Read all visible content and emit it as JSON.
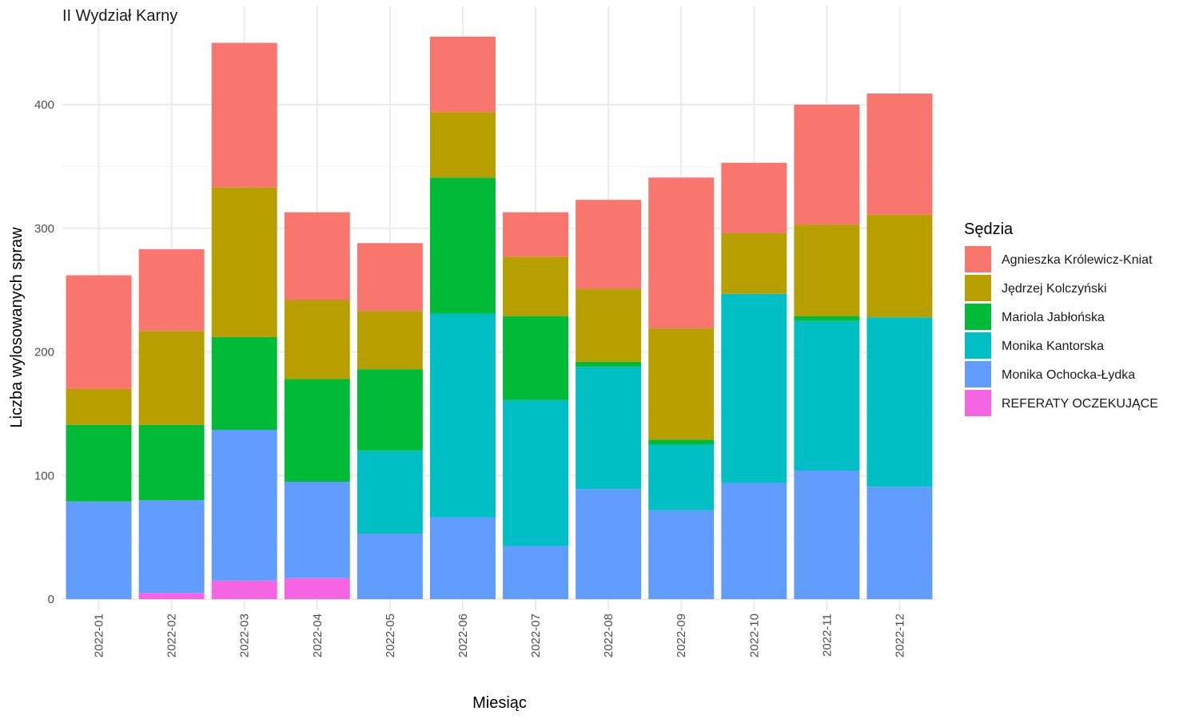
{
  "chart_data": {
    "type": "bar",
    "stacked": true,
    "title": "II Wydział Karny",
    "xlabel": "Miesiąc",
    "ylabel": "Liczba wylosowanych spraw",
    "ylim": [
      0,
      470
    ],
    "yticks": [
      0,
      100,
      200,
      300,
      400
    ],
    "grid": true,
    "legend_title": "Sędzia",
    "legend_position": "right",
    "categories": [
      "2022-01",
      "2022-02",
      "2022-03",
      "2022-04",
      "2022-05",
      "2022-06",
      "2022-07",
      "2022-08",
      "2022-09",
      "2022-10",
      "2022-11",
      "2022-12"
    ],
    "stack_order": [
      "REFERATY OCZEKUJĄCE",
      "Monika Ochocka-Łydka",
      "Monika Kantorska",
      "Mariola Jabłońska",
      "Jędrzej Kolczyński",
      "Agnieszka Królewicz-Kniat"
    ],
    "series": [
      {
        "name": "Agnieszka Królewicz-Kniat",
        "color": "#F8766D",
        "values": [
          92,
          66,
          117,
          71,
          55,
          61,
          36,
          72,
          122,
          57,
          97,
          98
        ]
      },
      {
        "name": "Jędrzej Kolczyński",
        "color": "#B79F00",
        "values": [
          29,
          76,
          121,
          64,
          47,
          53,
          48,
          59,
          90,
          49,
          74,
          83
        ]
      },
      {
        "name": "Mariola Jabłońska",
        "color": "#00BA38",
        "values": [
          62,
          61,
          75,
          83,
          66,
          110,
          68,
          4,
          4,
          0,
          4,
          0
        ]
      },
      {
        "name": "Monika Kantorska",
        "color": "#00BFC4",
        "values": [
          0,
          0,
          0,
          0,
          67,
          165,
          118,
          99,
          53,
          153,
          121,
          137
        ]
      },
      {
        "name": "Monika Ochocka-Łydka",
        "color": "#619CFF",
        "values": [
          79,
          75,
          122,
          78,
          53,
          66,
          43,
          89,
          72,
          94,
          104,
          91
        ]
      },
      {
        "name": "REFERATY OCZEKUJĄCE",
        "color": "#F564E3",
        "values": [
          0,
          5,
          15,
          17,
          0,
          0,
          0,
          0,
          0,
          0,
          0,
          0
        ]
      }
    ]
  }
}
